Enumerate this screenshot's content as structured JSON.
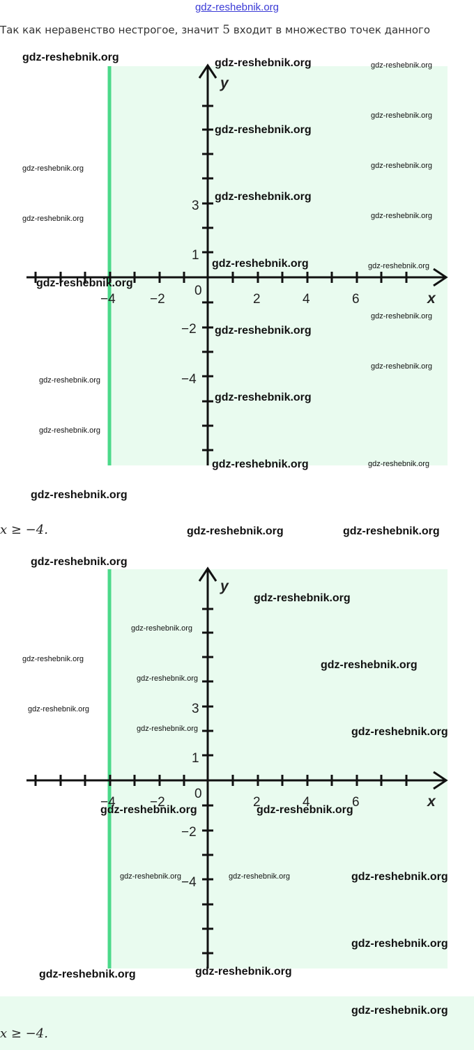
{
  "header": {
    "site_link": "gdz-reshebnik.org"
  },
  "intro": {
    "text_before": "Так как неравенство нестрогое, значит ",
    "number": "5",
    "text_after": " входит в множество точек данного"
  },
  "graphs": [
    {
      "x_ticks": [
        "−4",
        "−2",
        "2",
        "4",
        "6"
      ],
      "y_ticks": [
        "3",
        "1",
        "−2",
        "−4"
      ],
      "origin_label": "0",
      "x_label": "x",
      "y_label": "y",
      "boundary_x": -4,
      "shade_color": "#e9fbef",
      "boundary_color": "#4cd98a"
    },
    {
      "x_ticks": [
        "−4",
        "−2",
        "2",
        "4",
        "6"
      ],
      "y_ticks": [
        "3",
        "1",
        "−2",
        "−4"
      ],
      "origin_label": "0",
      "x_label": "x",
      "y_label": "y",
      "boundary_x": -4,
      "shade_color": "#e9fbef",
      "boundary_color": "#4cd98a"
    }
  ],
  "answers": [
    "x ≥ −4.",
    "x ≥ −4."
  ],
  "watermark": "gdz-reshebnik.org"
}
